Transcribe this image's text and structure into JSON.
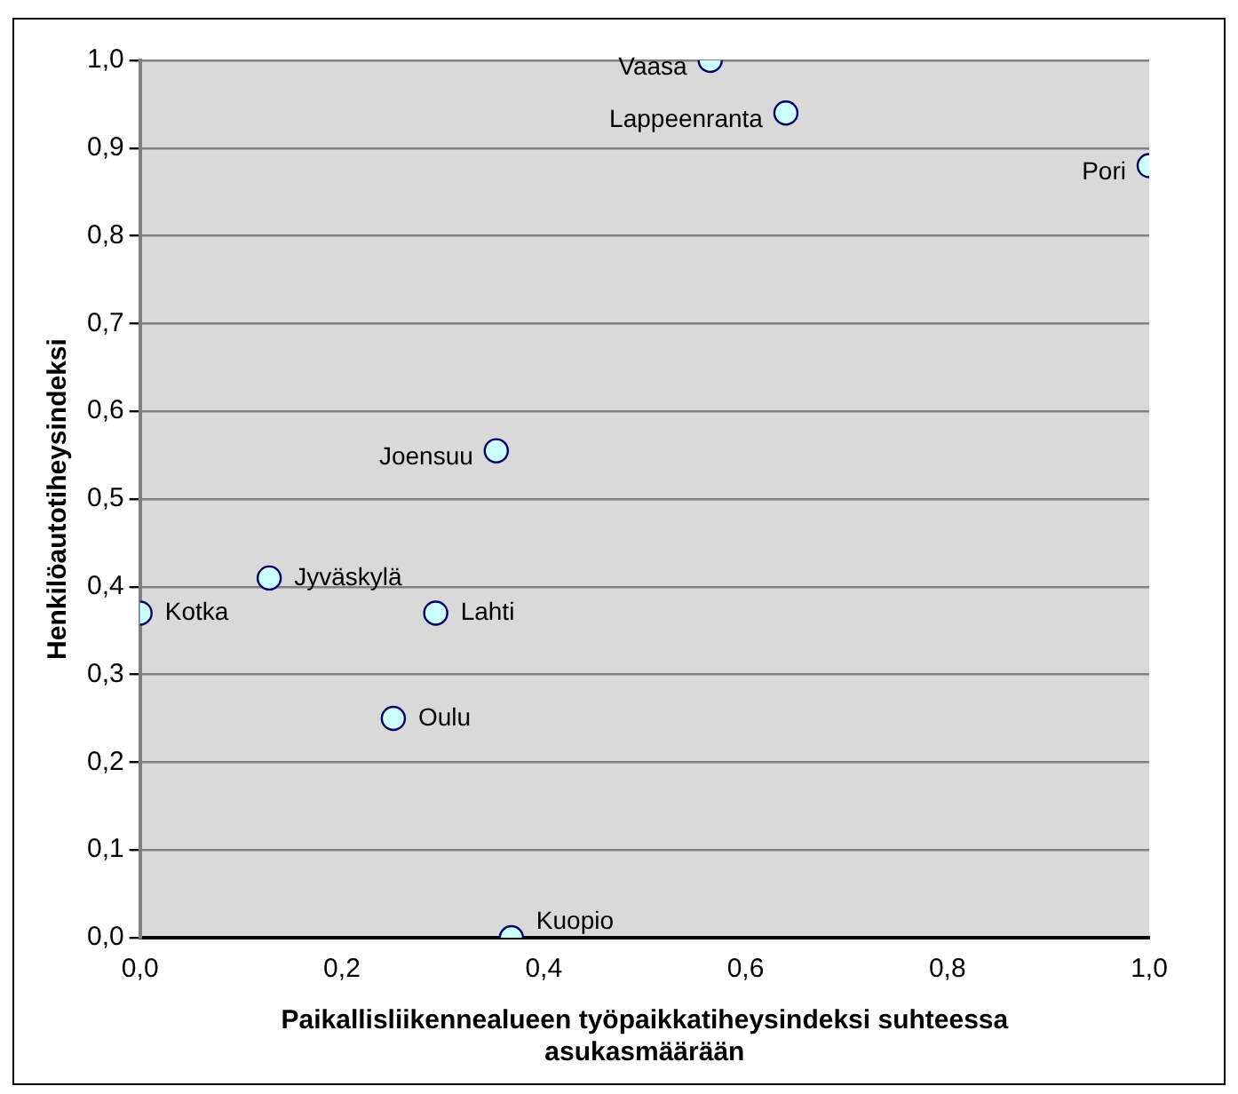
{
  "chart_data": {
    "type": "scatter",
    "xlabel": "Paikallisliikennealueen työpaikkatiheysindeksi suhteessa asukasmäärään",
    "ylabel": "Henkilöautotiheysindeksi",
    "series": [
      {
        "color": "#ccffff",
        "x": [
          0.565,
          0.64,
          1.0,
          0.353,
          0.128,
          0.0,
          0.293,
          0.251,
          0.368
        ],
        "values": [
          1.0,
          0.94,
          0.88,
          0.555,
          0.41,
          0.37,
          0.37,
          0.25,
          0.0
        ]
      }
    ],
    "xlim": [
      0,
      1
    ],
    "ylim": [
      0,
      1
    ],
    "xticks": [
      {
        "value": 0,
        "label": "0,0"
      },
      {
        "value": 0.2,
        "label": "0,2"
      },
      {
        "value": 0.4,
        "label": "0,4"
      },
      {
        "value": 0.6,
        "label": "0,6"
      },
      {
        "value": 0.8,
        "label": "0,8"
      },
      {
        "value": 1,
        "label": "1,0"
      }
    ],
    "yticks": [
      {
        "value": 0,
        "label": "0,0"
      },
      {
        "value": 0.1,
        "label": "0,1"
      },
      {
        "value": 0.2,
        "label": "0,2"
      },
      {
        "value": 0.3,
        "label": "0,3"
      },
      {
        "value": 0.4,
        "label": "0,4"
      },
      {
        "value": 0.5,
        "label": "0,5"
      },
      {
        "value": 0.6,
        "label": "0,6"
      },
      {
        "value": 0.7,
        "label": "0,7"
      },
      {
        "value": 0.8,
        "label": "0,8"
      },
      {
        "value": 0.9,
        "label": "0,9"
      },
      {
        "value": 1,
        "label": "1,0"
      }
    ],
    "grid": "y",
    "marker": "circle",
    "legend": false,
    "annotations": [
      {
        "text": "Vaasa",
        "x": 0.565,
        "y": 1.0
      },
      {
        "text": "Lappeenranta",
        "x": 0.64,
        "y": 0.94
      },
      {
        "text": "Pori",
        "x": 1.0,
        "y": 0.88
      },
      {
        "text": "Joensuu",
        "x": 0.353,
        "y": 0.555
      },
      {
        "text": "Jyväskylä",
        "x": 0.128,
        "y": 0.41
      },
      {
        "text": "Kotka",
        "x": 0.0,
        "y": 0.37
      },
      {
        "text": "Lahti",
        "x": 0.293,
        "y": 0.37
      },
      {
        "text": "Oulu",
        "x": 0.251,
        "y": 0.25
      },
      {
        "text": "Kuopio",
        "x": 0.368,
        "y": 0.0
      }
    ]
  }
}
